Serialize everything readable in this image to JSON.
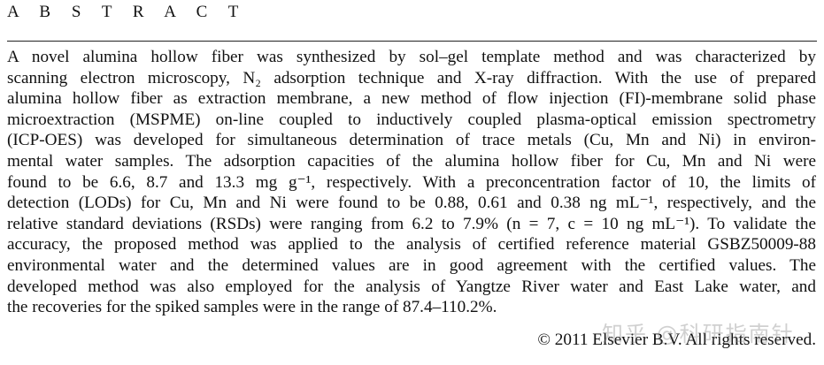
{
  "heading": "A B S T R A C T",
  "abstract_lines": [
    "A novel alumina hollow fiber was synthesized by sol–gel template method and was characterized by",
    "scanning electron microscopy, N₂ adsorption technique and X-ray diffraction. With the use of prepared",
    "alumina hollow fiber as extraction membrane, a new method of flow injection (FI)-membrane solid phase",
    "microextraction (MSPME) on-line coupled to inductively coupled plasma-optical emission spectrometry",
    "(ICP-OES) was developed for simultaneous determination of trace metals (Cu, Mn and Ni) in environ-",
    "mental water samples. The adsorption capacities of the alumina hollow fiber for Cu, Mn and Ni were",
    "found to be 6.6, 8.7 and 13.3 mg g⁻¹, respectively. With a preconcentration factor of 10, the limits of",
    "detection (LODs) for Cu, Mn and Ni were found to be 0.88, 0.61 and 0.38 ng mL⁻¹, respectively, and the",
    "relative standard deviations (RSDs) were ranging from 6.2 to 7.9% (n = 7, c = 10 ng mL⁻¹). To validate the",
    "accuracy, the proposed method was applied to the analysis of certified reference material GSBZ50009-88",
    "environmental water and the determined values are in good agreement with the certified values. The",
    "developed method was also employed for the analysis of Yangtze River water and East Lake water, and",
    "the recoveries for the spiked samples were in the range of 87.4–110.2%."
  ],
  "copyright": "© 2011 Elsevier B.V. All rights reserved.",
  "watermark": "知乎 @科研指南针"
}
